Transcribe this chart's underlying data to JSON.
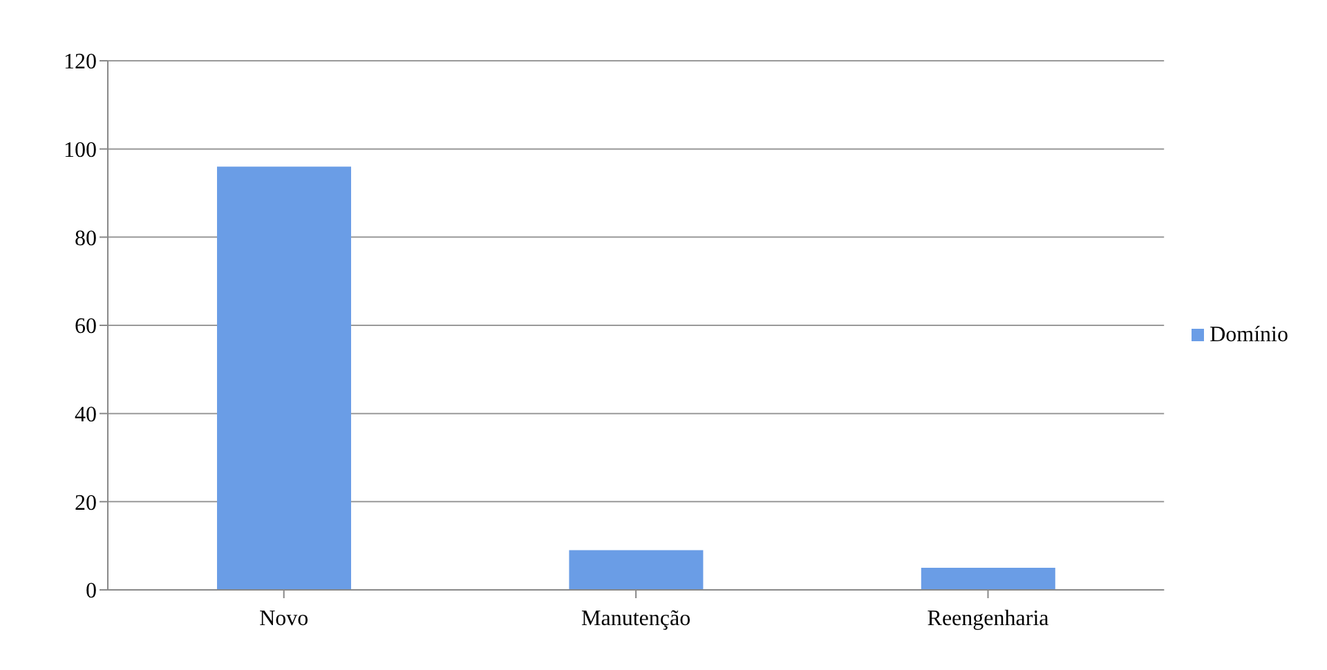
{
  "chart_data": {
    "type": "bar",
    "categories": [
      "Novo",
      "Manutenção",
      "Reengenharia"
    ],
    "series": [
      {
        "name": "Domínio",
        "color": "#6a9de6",
        "values": [
          96,
          9,
          5
        ]
      }
    ],
    "ylim": [
      0,
      120
    ],
    "yticks": [
      0,
      20,
      40,
      60,
      80,
      100,
      120
    ],
    "grid": "y",
    "legend": "right"
  }
}
